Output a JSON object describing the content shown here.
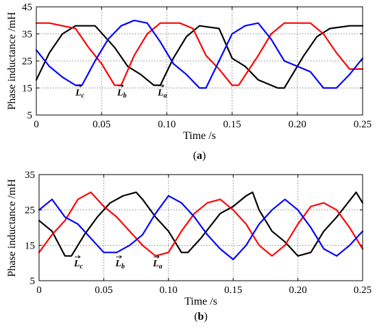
{
  "colors": {
    "black": "#000000",
    "red": "#ff0000",
    "blue": "#0000ff"
  },
  "chart_data": [
    {
      "type": "line",
      "caption_letter": "a",
      "xlabel": "Time /s",
      "ylabel": "Phase inductance /mH",
      "xlim": [
        0,
        0.25
      ],
      "ylim": [
        5,
        45
      ],
      "xticks": [
        "0",
        "0.05",
        "0.10",
        "0.15",
        "0.20",
        "0.25"
      ],
      "yticks": [
        "5",
        "15",
        "25",
        "35",
        "45"
      ],
      "grid": true,
      "annotations": [
        {
          "base": "L",
          "sub": "c",
          "x": 0.03,
          "y": 13.5
        },
        {
          "base": "L",
          "sub": "b",
          "x": 0.062,
          "y": 13.5
        },
        {
          "base": "L",
          "sub": "a",
          "x": 0.093,
          "y": 13.5
        }
      ],
      "series": [
        {
          "color": "black",
          "points": [
            [
              0,
              18
            ],
            [
              0.01,
              28
            ],
            [
              0.02,
              35
            ],
            [
              0.03,
              38
            ],
            [
              0.045,
              38
            ],
            [
              0.06,
              30
            ],
            [
              0.07,
              23
            ],
            [
              0.08,
              20
            ],
            [
              0.09,
              16
            ],
            [
              0.095,
              16
            ],
            [
              0.105,
              26
            ],
            [
              0.115,
              34
            ],
            [
              0.125,
              38
            ],
            [
              0.14,
              37
            ],
            [
              0.15,
              26
            ],
            [
              0.16,
              23
            ],
            [
              0.17,
              18
            ],
            [
              0.185,
              15
            ],
            [
              0.19,
              15
            ],
            [
              0.205,
              27
            ],
            [
              0.215,
              34
            ],
            [
              0.225,
              37
            ],
            [
              0.24,
              38
            ],
            [
              0.25,
              38
            ]
          ]
        },
        {
          "color": "red",
          "points": [
            [
              0,
              39
            ],
            [
              0.01,
              39
            ],
            [
              0.02,
              38
            ],
            [
              0.03,
              37
            ],
            [
              0.04,
              30
            ],
            [
              0.05,
              24
            ],
            [
              0.06,
              16
            ],
            [
              0.065,
              16
            ],
            [
              0.075,
              27
            ],
            [
              0.085,
              35
            ],
            [
              0.095,
              39
            ],
            [
              0.11,
              39
            ],
            [
              0.12,
              37
            ],
            [
              0.13,
              27
            ],
            [
              0.14,
              22
            ],
            [
              0.15,
              16
            ],
            [
              0.155,
              16
            ],
            [
              0.17,
              27
            ],
            [
              0.18,
              35
            ],
            [
              0.19,
              39
            ],
            [
              0.21,
              39
            ],
            [
              0.22,
              35
            ],
            [
              0.23,
              28
            ],
            [
              0.24,
              22
            ],
            [
              0.25,
              22
            ]
          ]
        },
        {
          "color": "blue",
          "points": [
            [
              0,
              29
            ],
            [
              0.01,
              23
            ],
            [
              0.02,
              19
            ],
            [
              0.03,
              16
            ],
            [
              0.035,
              16
            ],
            [
              0.045,
              25
            ],
            [
              0.055,
              33
            ],
            [
              0.065,
              38
            ],
            [
              0.075,
              40
            ],
            [
              0.085,
              39
            ],
            [
              0.095,
              32
            ],
            [
              0.105,
              24
            ],
            [
              0.115,
              20
            ],
            [
              0.125,
              15
            ],
            [
              0.13,
              15
            ],
            [
              0.14,
              25
            ],
            [
              0.15,
              35
            ],
            [
              0.16,
              38
            ],
            [
              0.17,
              39
            ],
            [
              0.18,
              33
            ],
            [
              0.19,
              25
            ],
            [
              0.2,
              23
            ],
            [
              0.21,
              21
            ],
            [
              0.22,
              15
            ],
            [
              0.23,
              15
            ],
            [
              0.24,
              20
            ],
            [
              0.25,
              26
            ]
          ]
        }
      ]
    },
    {
      "type": "line",
      "caption_letter": "b",
      "xlabel": "Time /s",
      "ylabel": "Phase inductance /mH",
      "xlim": [
        0,
        0.25
      ],
      "ylim": [
        5,
        35
      ],
      "xticks": [
        "0",
        "0.05",
        "0.10",
        "0.15",
        "0.20",
        "0.25"
      ],
      "yticks": [
        "5",
        "15",
        "25",
        "35"
      ],
      "grid": true,
      "annotations": [
        {
          "base": "L",
          "sub": "c",
          "x": 0.027,
          "y": 10
        },
        {
          "base": "L",
          "sub": "b",
          "x": 0.059,
          "y": 10
        },
        {
          "base": "L",
          "sub": "a",
          "x": 0.088,
          "y": 10
        }
      ],
      "series": [
        {
          "color": "black",
          "points": [
            [
              0,
              22
            ],
            [
              0.01,
              19
            ],
            [
              0.02,
              12
            ],
            [
              0.025,
              12
            ],
            [
              0.035,
              18
            ],
            [
              0.045,
              23
            ],
            [
              0.055,
              27
            ],
            [
              0.065,
              29
            ],
            [
              0.075,
              30
            ],
            [
              0.08,
              28
            ],
            [
              0.09,
              23
            ],
            [
              0.1,
              19
            ],
            [
              0.11,
              13
            ],
            [
              0.115,
              13
            ],
            [
              0.125,
              17
            ],
            [
              0.14,
              24
            ],
            [
              0.15,
              26
            ],
            [
              0.16,
              29
            ],
            [
              0.165,
              30
            ],
            [
              0.17,
              25
            ],
            [
              0.18,
              19
            ],
            [
              0.19,
              16
            ],
            [
              0.2,
              12
            ],
            [
              0.21,
              13
            ],
            [
              0.22,
              19
            ],
            [
              0.23,
              23
            ],
            [
              0.245,
              30
            ],
            [
              0.25,
              27
            ]
          ]
        },
        {
          "color": "red",
          "points": [
            [
              0,
              13
            ],
            [
              0.01,
              18
            ],
            [
              0.02,
              22
            ],
            [
              0.03,
              28
            ],
            [
              0.04,
              30
            ],
            [
              0.05,
              26
            ],
            [
              0.06,
              23
            ],
            [
              0.07,
              19
            ],
            [
              0.08,
              15
            ],
            [
              0.09,
              12
            ],
            [
              0.1,
              13
            ],
            [
              0.11,
              19
            ],
            [
              0.12,
              24
            ],
            [
              0.13,
              27
            ],
            [
              0.14,
              28
            ],
            [
              0.15,
              25
            ],
            [
              0.16,
              21
            ],
            [
              0.17,
              15
            ],
            [
              0.18,
              12
            ],
            [
              0.19,
              15
            ],
            [
              0.2,
              21
            ],
            [
              0.21,
              26
            ],
            [
              0.22,
              27
            ],
            [
              0.23,
              25
            ],
            [
              0.24,
              20
            ],
            [
              0.25,
              14
            ]
          ]
        },
        {
          "color": "blue",
          "points": [
            [
              0,
              25
            ],
            [
              0.01,
              28
            ],
            [
              0.02,
              23
            ],
            [
              0.03,
              21
            ],
            [
              0.04,
              17
            ],
            [
              0.05,
              13
            ],
            [
              0.06,
              13
            ],
            [
              0.07,
              15
            ],
            [
              0.08,
              18
            ],
            [
              0.09,
              24
            ],
            [
              0.1,
              29
            ],
            [
              0.11,
              27
            ],
            [
              0.12,
              23
            ],
            [
              0.13,
              18
            ],
            [
              0.14,
              14
            ],
            [
              0.15,
              11
            ],
            [
              0.16,
              15
            ],
            [
              0.17,
              21
            ],
            [
              0.18,
              25
            ],
            [
              0.19,
              28
            ],
            [
              0.2,
              25
            ],
            [
              0.21,
              20
            ],
            [
              0.22,
              14
            ],
            [
              0.23,
              12
            ],
            [
              0.24,
              15
            ],
            [
              0.25,
              19
            ]
          ]
        }
      ]
    }
  ]
}
